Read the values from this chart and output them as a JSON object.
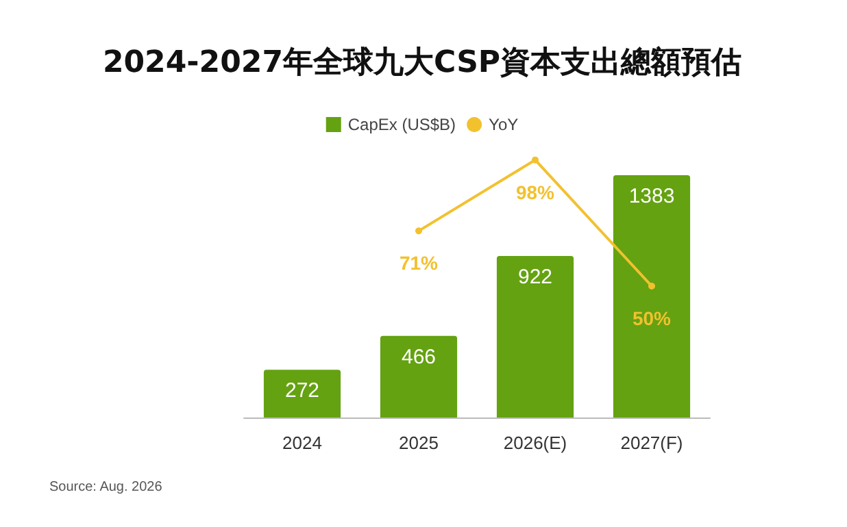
{
  "chart_data": {
    "type": "bar",
    "title": "2024-2027年全球九大CSP資本支出總額預估",
    "categories": [
      "2024",
      "2025",
      "2026(E)",
      "2027(F)"
    ],
    "series": [
      {
        "name": "CapEx (US$B)",
        "color": "#64a211",
        "values": [
          272,
          466,
          922,
          1383
        ],
        "value_labels": [
          "272",
          "466",
          "922",
          "1383"
        ]
      },
      {
        "name": "YoY",
        "type": "line",
        "axis": "y2",
        "color": "#f2c12e",
        "values": [
          null,
          71,
          98,
          50
        ],
        "value_labels": [
          null,
          "71%",
          "98%",
          "50%"
        ]
      }
    ],
    "legend": "top",
    "grid": false,
    "tick_labels": "x",
    "marker": "circle",
    "line_style": "solid",
    "annotations": [
      "Source: Aug. 2026"
    ]
  }
}
